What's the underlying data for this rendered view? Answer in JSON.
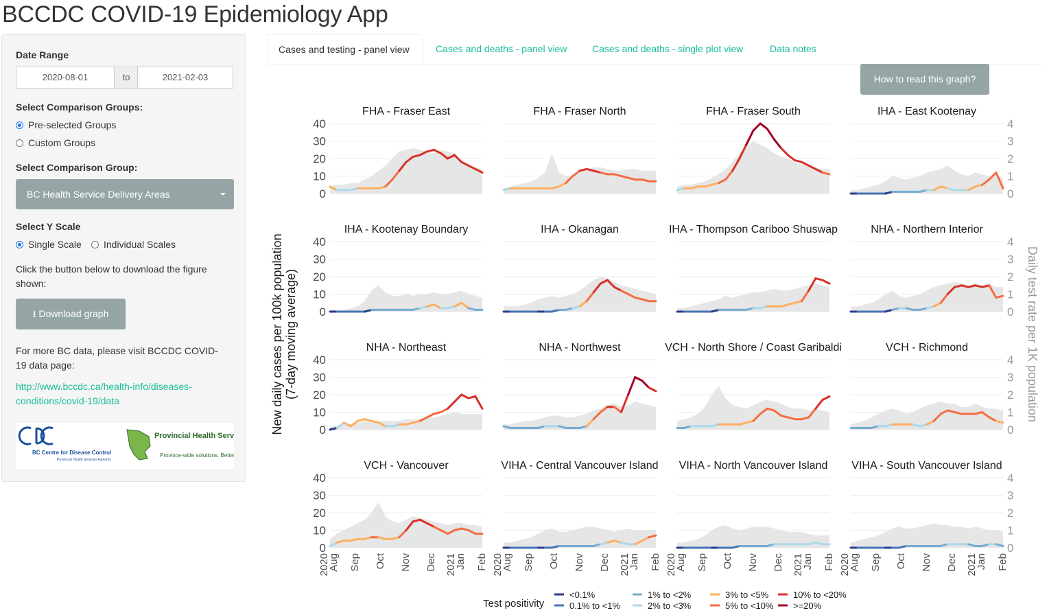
{
  "app": {
    "title": "BCCDC COVID-19 Epidemiology App"
  },
  "sidebar": {
    "date_range_label": "Date Range",
    "date_start": "2020-08-01",
    "date_sep": "to",
    "date_end": "2021-02-03",
    "groups_label": "Select Comparison Groups:",
    "groups_options": [
      "Pre-selected Groups",
      "Custom Groups"
    ],
    "group_label": "Select Comparison Group:",
    "group_selected": "BC Health Service Delivery Areas",
    "yscale_label": "Select Y Scale",
    "yscale_options": [
      "Single Scale",
      "Individual Scales"
    ],
    "download_text": "Click the button below to download the figure shown:",
    "download_button": "Download graph",
    "more_text": "For more BC data, please visit BCCDC COVID-19 data page:",
    "link": "http://www.bccdc.ca/health-info/diseases-conditions/covid-19/data",
    "logo_bccdc": "BC Centre for Disease Control",
    "logo_bccdc_sub": "Provincial Health Services Authority",
    "logo_phsa": "Provincial Health Services Authority",
    "logo_phsa_sub": "Province-wide solutions. Better health."
  },
  "tabs": [
    "Cases and testing - panel view",
    "Cases and deaths - panel view",
    "Cases and deaths - single plot view",
    "Data notes"
  ],
  "help_button": "How to read this graph?",
  "colors": {
    "grey_fill": "#e6e6e6",
    "positivity": [
      "#2b3b8c",
      "#4575b4",
      "#74add1",
      "#abd9e9",
      "#fdae61",
      "#f46d43",
      "#d73027",
      "#a50026"
    ]
  },
  "chart_data": {
    "type": "line",
    "ylabel": "New daily cases per 100k population\n(7-day moving average)",
    "ylabel2": "Daily test rate per 1K population",
    "ylim": [
      0,
      40
    ],
    "ylim2": [
      0,
      4
    ],
    "yticks": [
      0,
      10,
      20,
      30,
      40
    ],
    "yticks2": [
      0,
      1,
      2,
      3,
      4
    ],
    "x_ticks": [
      "2020 Aug",
      "Sep",
      "Oct",
      "Nov",
      "Dec",
      "2021 Jan",
      "Feb"
    ],
    "legend_title": "Test positivity",
    "legend": [
      "<0.1%",
      "0.1% to <1%",
      "1% to <2%",
      "2% to <3%",
      "3% to <5%",
      "5% to <10%",
      "10% to <20%",
      ">=20%"
    ],
    "panels": [
      {
        "name": "FHA - Fraser East",
        "cases": [
          4,
          2,
          2,
          2,
          3,
          3,
          3,
          3,
          4,
          8,
          13,
          18,
          21,
          22,
          24,
          25,
          23,
          20,
          22,
          18,
          16,
          14,
          12
        ],
        "tests": [
          0.4,
          0.5,
          0.5,
          0.6,
          0.6,
          0.8,
          1.0,
          1.3,
          1.6,
          2.0,
          2.4,
          2.5,
          2.6,
          2.5,
          2.4,
          2.3,
          2.5,
          2.4,
          2.3,
          1.8,
          1.6,
          1.5,
          1.4
        ]
      },
      {
        "name": "FHA - Fraser North",
        "cases": [
          2,
          3,
          3,
          3,
          3,
          3,
          3,
          3,
          4,
          6,
          10,
          13,
          14,
          13,
          12,
          11,
          11,
          10,
          9,
          8,
          8,
          7,
          7
        ],
        "tests": [
          0.3,
          0.4,
          0.5,
          0.6,
          0.7,
          0.9,
          1.2,
          2.3,
          1.2,
          1.0,
          1.0,
          1.2,
          1.4,
          1.5,
          1.5,
          1.4,
          1.3,
          1.3,
          1.4,
          1.4,
          1.3,
          1.3,
          1.3
        ]
      },
      {
        "name": "FHA - Fraser South",
        "cases": [
          2,
          3,
          3,
          4,
          4,
          5,
          6,
          8,
          13,
          20,
          28,
          36,
          40,
          37,
          31,
          26,
          22,
          19,
          18,
          16,
          14,
          12,
          11
        ],
        "tests": [
          0.4,
          0.5,
          0.5,
          0.6,
          0.7,
          0.9,
          1.1,
          1.4,
          1.8,
          2.3,
          2.7,
          3.0,
          2.8,
          2.6,
          2.3,
          2.1,
          2.0,
          1.8,
          1.7,
          1.6,
          1.5,
          1.4,
          1.4
        ]
      },
      {
        "name": "IHA - East Kootenay",
        "cases": [
          0,
          0,
          0,
          0,
          0,
          0,
          1,
          1,
          1,
          1,
          1,
          2,
          2,
          4,
          3,
          2,
          2,
          2,
          4,
          5,
          8,
          12,
          3
        ],
        "tests": [
          0.2,
          0.2,
          0.3,
          0.4,
          0.5,
          0.7,
          1.0,
          0.9,
          0.8,
          0.9,
          1.0,
          1.2,
          1.3,
          1.4,
          1.6,
          1.3,
          1.1,
          1.0,
          1.2,
          1.1,
          1.0,
          1.0,
          0.9
        ]
      },
      {
        "name": "IHA - Kootenay Boundary",
        "cases": [
          0,
          0,
          0,
          0,
          0,
          0,
          1,
          1,
          1,
          1,
          1,
          1,
          1,
          2,
          3,
          4,
          2,
          2,
          3,
          5,
          2,
          1,
          1
        ],
        "tests": [
          0.1,
          0.1,
          0.1,
          0.2,
          0.3,
          0.6,
          1.2,
          1.5,
          1.1,
          0.9,
          0.9,
          1.0,
          0.9,
          1.0,
          1.0,
          1.1,
          1.0,
          1.0,
          1.1,
          1.2,
          1.0,
          0.9,
          0.8
        ]
      },
      {
        "name": "IHA - Okanagan",
        "cases": [
          0,
          0,
          0,
          0,
          0,
          0,
          0,
          0,
          1,
          1,
          2,
          3,
          6,
          11,
          16,
          18,
          14,
          12,
          10,
          8,
          7,
          6,
          6
        ],
        "tests": [
          0.3,
          0.3,
          0.3,
          0.4,
          0.5,
          0.7,
          0.8,
          0.9,
          0.8,
          0.9,
          1.0,
          1.2,
          1.5,
          1.8,
          2.0,
          1.9,
          1.7,
          1.5,
          1.4,
          1.3,
          1.2,
          1.1,
          1.0
        ]
      },
      {
        "name": "IHA - Thompson Cariboo Shuswap",
        "cases": [
          0,
          0,
          0,
          0,
          0,
          0,
          1,
          1,
          1,
          1,
          1,
          2,
          2,
          3,
          3,
          3,
          4,
          5,
          6,
          12,
          19,
          18,
          16
        ],
        "tests": [
          0.2,
          0.2,
          0.3,
          0.4,
          0.5,
          0.6,
          0.7,
          0.9,
          0.8,
          0.9,
          1.0,
          1.1,
          1.1,
          1.2,
          1.3,
          1.2,
          1.2,
          1.3,
          1.4,
          1.5,
          1.6,
          1.5,
          1.4
        ]
      },
      {
        "name": "NHA - Northern Interior",
        "cases": [
          0,
          0,
          0,
          0,
          0,
          0,
          1,
          2,
          2,
          1,
          1,
          2,
          3,
          5,
          10,
          14,
          15,
          14,
          15,
          14,
          15,
          8,
          9
        ],
        "tests": [
          0.3,
          0.3,
          0.4,
          0.5,
          0.7,
          1.0,
          1.2,
          0.9,
          0.8,
          0.9,
          1.0,
          1.2,
          1.4,
          1.5,
          1.6,
          1.7,
          1.6,
          1.5,
          1.6,
          1.5,
          1.6,
          1.4,
          1.4
        ]
      },
      {
        "name": "NHA - Northeast",
        "cases": [
          0,
          1,
          4,
          2,
          5,
          6,
          5,
          4,
          2,
          2,
          3,
          3,
          4,
          5,
          7,
          9,
          10,
          12,
          16,
          20,
          18,
          19,
          12
        ],
        "tests": [
          0.2,
          0.2,
          0.3,
          0.3,
          0.4,
          0.5,
          0.5,
          0.5,
          0.5,
          0.5,
          0.5,
          0.6,
          0.6,
          0.6,
          0.7,
          0.7,
          0.8,
          0.9,
          1.0,
          0.9,
          0.9,
          0.9,
          0.9
        ]
      },
      {
        "name": "NHA - Northwest",
        "cases": [
          2,
          1,
          1,
          1,
          1,
          1,
          2,
          2,
          2,
          1,
          1,
          1,
          2,
          6,
          10,
          13,
          13,
          10,
          20,
          30,
          28,
          24,
          22
        ],
        "tests": [
          0.3,
          0.3,
          0.4,
          0.5,
          0.5,
          0.6,
          0.7,
          0.8,
          0.8,
          0.7,
          0.7,
          0.8,
          0.9,
          1.1,
          1.2,
          1.4,
          1.5,
          1.3,
          1.4,
          1.6,
          1.5,
          1.4,
          1.3
        ]
      },
      {
        "name": "VCH - North Shore / Coast Garibaldi",
        "cases": [
          1,
          1,
          2,
          2,
          2,
          2,
          3,
          3,
          3,
          3,
          4,
          5,
          9,
          12,
          11,
          8,
          7,
          6,
          6,
          7,
          12,
          17,
          19
        ],
        "tests": [
          0.5,
          0.6,
          0.7,
          0.9,
          1.3,
          2.0,
          2.5,
          1.8,
          1.4,
          1.3,
          1.2,
          1.4,
          1.6,
          1.7,
          1.6,
          1.5,
          1.3,
          1.2,
          1.2,
          1.1,
          1.2,
          1.1,
          1.0
        ]
      },
      {
        "name": "VCH - Richmond",
        "cases": [
          1,
          1,
          1,
          1,
          2,
          2,
          3,
          3,
          3,
          3,
          2,
          3,
          5,
          9,
          11,
          10,
          9,
          9,
          9,
          10,
          7,
          5,
          4
        ],
        "tests": [
          0.3,
          0.4,
          0.5,
          0.7,
          0.9,
          1.1,
          1.2,
          1.1,
          0.9,
          1.0,
          1.2,
          1.4,
          1.5,
          1.6,
          1.5,
          1.5,
          1.3,
          1.3,
          1.5,
          1.3,
          1.2,
          1.2,
          1.1
        ]
      },
      {
        "name": "VCH - Vancouver",
        "cases": [
          1,
          3,
          4,
          4,
          5,
          5,
          6,
          6,
          5,
          5,
          6,
          10,
          15,
          16,
          14,
          12,
          10,
          8,
          10,
          11,
          10,
          8,
          8
        ],
        "tests": [
          0.5,
          0.8,
          1.0,
          1.2,
          1.4,
          1.6,
          2.0,
          2.6,
          1.8,
          1.5,
          1.4,
          1.6,
          1.8,
          1.7,
          1.6,
          1.5,
          1.4,
          1.3,
          1.4,
          1.4,
          1.3,
          1.3,
          1.2
        ]
      },
      {
        "name": "VIHA - Central Vancouver Island",
        "cases": [
          0,
          0,
          0,
          0,
          0,
          0,
          0,
          0,
          1,
          1,
          1,
          1,
          1,
          1,
          2,
          3,
          4,
          3,
          2,
          2,
          4,
          6,
          7
        ],
        "tests": [
          0.3,
          0.3,
          0.4,
          0.5,
          0.6,
          0.8,
          1.0,
          1.1,
          0.9,
          0.9,
          1.0,
          1.1,
          1.2,
          1.2,
          1.1,
          1.0,
          0.9,
          1.0,
          1.1,
          1.0,
          1.0,
          1.0,
          1.0
        ]
      },
      {
        "name": "VIHA - North Vancouver Island",
        "cases": [
          0,
          0,
          0,
          0,
          0,
          0,
          0,
          0,
          0,
          1,
          1,
          1,
          1,
          1,
          2,
          2,
          2,
          2,
          2,
          2,
          3,
          2,
          2
        ],
        "tests": [
          0.3,
          0.3,
          0.4,
          0.5,
          0.7,
          1.0,
          1.2,
          1.3,
          1.1,
          1.0,
          1.1,
          1.2,
          1.2,
          1.2,
          1.1,
          1.0,
          0.9,
          0.9,
          0.9,
          0.8,
          0.7,
          0.7,
          0.7
        ]
      },
      {
        "name": "VIHA - South Vancouver Island",
        "cases": [
          0,
          0,
          0,
          0,
          0,
          0,
          0,
          0,
          1,
          1,
          1,
          1,
          1,
          1,
          2,
          2,
          2,
          2,
          1,
          1,
          2,
          2,
          1
        ],
        "tests": [
          0.3,
          0.4,
          0.5,
          0.6,
          0.7,
          0.9,
          1.1,
          1.2,
          1.1,
          1.1,
          1.2,
          1.3,
          1.4,
          1.3,
          1.3,
          1.2,
          1.2,
          1.1,
          1.2,
          1.1,
          1.0,
          1.0,
          0.9
        ]
      }
    ]
  }
}
